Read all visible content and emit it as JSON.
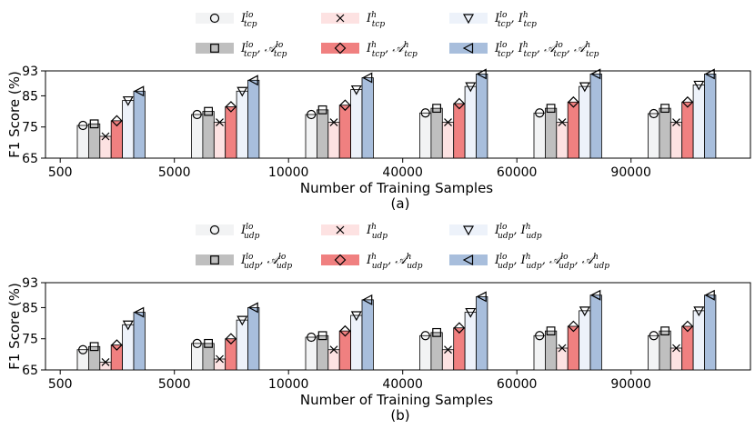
{
  "chart_data": [
    {
      "type": "bar",
      "panel_label": "(a)",
      "xlabel": "Number of Training Samples",
      "ylabel": "F1 Score (%)",
      "ylim": [
        65,
        93
      ],
      "yticks": [
        "65",
        "75",
        "85",
        "93"
      ],
      "categories": [
        "500",
        "5000",
        "10000",
        "40000",
        "60000",
        "90000"
      ],
      "legend_placement": "top, above plot, 3 columns",
      "series": [
        {
          "name": "I^lo_tcp",
          "values": [
            75.5,
            79.0,
            79.0,
            79.5,
            79.5,
            79.3
          ]
        },
        {
          "name": "I^lo_tcp, A^lo_tcp",
          "values": [
            76.0,
            80.0,
            80.5,
            81.0,
            81.0,
            81.0
          ]
        },
        {
          "name": "I^h_tcp",
          "values": [
            72.0,
            76.5,
            76.5,
            76.5,
            76.5,
            76.5
          ]
        },
        {
          "name": "I^h_tcp, A^h_tcp",
          "values": [
            77.0,
            81.5,
            82.0,
            82.5,
            83.0,
            83.0
          ]
        },
        {
          "name": "I^lo_tcp, I^h_tcp",
          "values": [
            83.5,
            86.5,
            87.0,
            88.0,
            88.0,
            88.5
          ]
        },
        {
          "name": "I^lo_tcp, I^h_tcp, A^lo_tcp, A^h_tcp",
          "values": [
            86.5,
            90.0,
            90.8,
            92.0,
            92.0,
            92.0
          ]
        }
      ]
    },
    {
      "type": "bar",
      "panel_label": "(b)",
      "xlabel": "Number of Training Samples",
      "ylabel": "F1 Score (%)",
      "ylim": [
        65,
        93
      ],
      "yticks": [
        "65",
        "75",
        "85",
        "93"
      ],
      "categories": [
        "500",
        "5000",
        "10000",
        "40000",
        "60000",
        "90000"
      ],
      "legend_placement": "top, above plot, 3 columns",
      "series": [
        {
          "name": "I^lo_udp",
          "values": [
            71.5,
            73.5,
            75.5,
            76.0,
            76.0,
            76.0
          ]
        },
        {
          "name": "I^lo_udp, A^lo_udp",
          "values": [
            72.5,
            73.5,
            76.0,
            77.0,
            77.5,
            77.5
          ]
        },
        {
          "name": "I^h_udp",
          "values": [
            67.5,
            68.5,
            71.5,
            71.5,
            72.0,
            72.0
          ]
        },
        {
          "name": "I^h_udp, A^h_udp",
          "values": [
            73.0,
            75.0,
            77.5,
            78.5,
            79.0,
            79.0
          ]
        },
        {
          "name": "I^lo_udp, I^h_udp",
          "values": [
            79.5,
            81.0,
            82.5,
            83.5,
            84.0,
            84.0
          ]
        },
        {
          "name": "I^lo_udp, I^h_udp, A^lo_udp, A^h_udp",
          "values": [
            83.5,
            85.0,
            87.5,
            88.5,
            89.0,
            89.0
          ]
        }
      ]
    }
  ],
  "style": {
    "series_fill": [
      "#f2f3f4",
      "#bfbfbf",
      "#fde2e2",
      "#f08080",
      "#edf2fa",
      "#a8bedc"
    ],
    "series_markers": [
      "circle",
      "square",
      "x",
      "diamond",
      "triangle-down",
      "triangle-left"
    ]
  },
  "legend_layout": [
    [
      0,
      2,
      4
    ],
    [
      1,
      3,
      5
    ]
  ]
}
